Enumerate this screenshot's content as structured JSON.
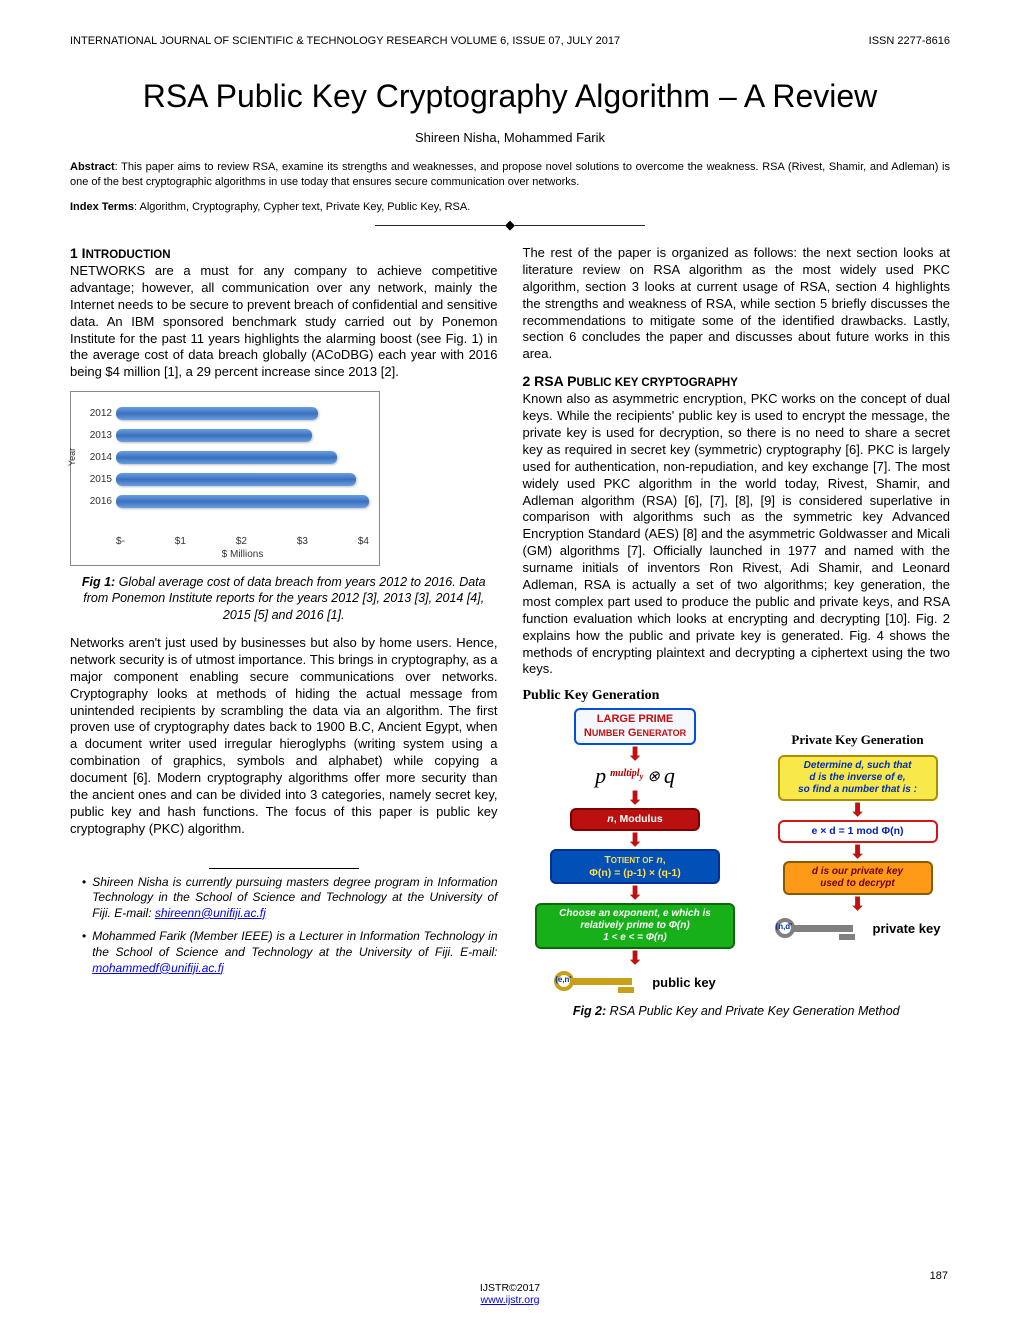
{
  "header": {
    "left": "INTERNATIONAL JOURNAL OF SCIENTIFIC & TECHNOLOGY RESEARCH VOLUME 6, ISSUE 07, JULY 2017",
    "right": "ISSN 2277-8616"
  },
  "title": "RSA Public Key Cryptography Algorithm – A Review",
  "authors": "Shireen Nisha, Mohammed Farik",
  "abstract_label": "Abstract",
  "abstract_text": ": This paper aims to review RSA, examine its strengths and weaknesses, and propose novel solutions to overcome the weakness. RSA (Rivest, Shamir, and Adleman) is one of the best cryptographic algorithms in use today that ensures secure communication over networks.",
  "index_label": "Index Terms",
  "index_text": ": Algorithm, Cryptography, Cypher text, Private Key, Public Key, RSA.",
  "divider": "————————————————————",
  "section1_head": "1 INTRODUCTION",
  "section1_p1": "NETWORKS are a must for any company to achieve competitive advantage; however, all communication over any network, mainly the Internet needs to be secure to prevent breach of confidential and sensitive data. An IBM sponsored benchmark study carried out by Ponemon Institute for the past 11 years highlights the alarming boost (see Fig. 1) in the average cost of data breach globally (ACoDBG) each year with 2016 being $4 million [1], a 29 percent increase since 2013 [2].",
  "fig1": {
    "years": [
      "2012",
      "2013",
      "2014",
      "2015",
      "2016"
    ],
    "values": [
      3.2,
      3.1,
      3.5,
      3.79,
      4.0
    ],
    "xmax": 4.0,
    "xticks": [
      "$-",
      "$1",
      "$2",
      "$3",
      "$4"
    ],
    "xlabel": "$ Millions",
    "ylabel": "Year",
    "bar_color": "#4a80d0",
    "border_color": "#888888"
  },
  "fig1_caption_b": "Fig 1:",
  "fig1_caption": " Global average cost of data breach from years 2012 to 2016. Data from Ponemon Institute reports for the years 2012 [3], 2013 [3], 2014 [4], 2015 [5] and 2016 [1].",
  "section1_p2": "Networks aren't just used by businesses but also by home users. Hence, network security is of utmost importance. This brings in cryptography, as a major component enabling secure communications over networks. Cryptography looks at methods of hiding the actual message from unintended recipients by scrambling the data via an algorithm. The first proven use of cryptography dates back to 1900 B.C, Ancient Egypt, when a document writer used irregular hieroglyphs (writing system using a combination of graphics, symbols and alphabet) while copying a document [6]. Modern cryptography algorithms offer more security than the ancient ones and can be divided into 3 categories, namely secret key, public key and hash functions. The focus of this paper is public key cryptography (PKC) algorithm.",
  "author_box": {
    "a1": "Shireen Nisha is currently pursuing masters degree program in Information Technology in the School of Science and Technology at the University of Fiji. E-mail: ",
    "a1_email": "shireenn@unifiji.ac.fj",
    "a2": "Mohammed Farik (Member IEEE) is a Lecturer in Information Technology in the School of Science and Technology at the University of Fiji. E-mail: ",
    "a2_email": "mohammedf@unifiji.ac.fj"
  },
  "col2_p1": "The rest of the paper is organized as follows:  the next section looks at literature review on RSA algorithm as the most widely used PKC algorithm, section 3 looks at current usage of RSA, section 4 highlights the strengths and weakness of RSA, while section 5 briefly discusses the recommendations to mitigate some of the identified drawbacks. Lastly, section 6 concludes the paper and discusses about future works in this area.",
  "section2_head": "2 RSA PUBLIC KEY CRYPTOGRAPHY",
  "section2_p1": "Known also as asymmetric encryption, PKC works on the concept of dual keys. While the recipients' public key is used to encrypt the message, the private key is used for decryption, so there is no need to share a secret key as required in secret key (symmetric) cryptography [6]. PKC is largely used for authentication, non-repudiation, and key exchange [7]. The most widely used PKC algorithm in the world today, Rivest, Shamir, and Adleman algorithm (RSA) [6], [7], [8], [9] is considered superlative in comparison with algorithms such as the symmetric key Advanced Encryption Standard (AES) [8] and the asymmetric Goldwasser and Micali (GM) algorithms [7]. Officially launched in 1977 and named with the surname initials of inventors Ron Rivest, Adi Shamir, and Leonard Adleman, RSA is actually a set of two algorithms; key generation, the most complex part used to produce the public and private keys, and RSA function evaluation which looks at encrypting and decrypting [10]. Fig. 2 explains how the public and private key is generated. Fig. 4 shows the methods of encrypting plaintext and decrypting a ciphertext using the two keys.",
  "fig2": {
    "pub_head": "Public Key Generation",
    "priv_head": "Private Key Generation",
    "box_prime": "LARGE PRIME\nNUMBER GENERATOR",
    "pq_label": "p  multiply  q",
    "box_modulus": "n, Modulus",
    "box_totient": "TOTIENT OF n,\nΦ(n) = (p-1) × (q-1)",
    "box_exponent": "Choose an exponent, e which is\nrelatively prime to Φ(n)\n1 < e < = Φ(n)",
    "pub_key_label": "(e,n)",
    "pub_key_cap": "public key",
    "box_det_d": "Determine d, such that\nd is the inverse of e,\nso find a number that is :",
    "box_exd": "e × d = 1 mod Φ(n)",
    "box_d_priv": "d is our private key\nused to decrypt",
    "priv_key_label": "(n,d)",
    "priv_key_cap": "private key",
    "colors": {
      "blue_border": "#0050d8",
      "red_border": "#d01818",
      "red_fill": "#bb1010",
      "blue_fill": "#0050b8",
      "green_fill": "#18b018",
      "orange_fill": "#ff9a18",
      "yellow_fill": "#f8e84a",
      "arrow": "#c01010",
      "gold": "#c8a018",
      "grey": "#808080"
    }
  },
  "fig2_caption_b": "Fig 2:",
  "fig2_caption": " RSA Public Key and Private Key Generation Method",
  "footer": {
    "copyright": "IJSTR©2017",
    "url": "www.ijstr.org",
    "page": "187"
  }
}
